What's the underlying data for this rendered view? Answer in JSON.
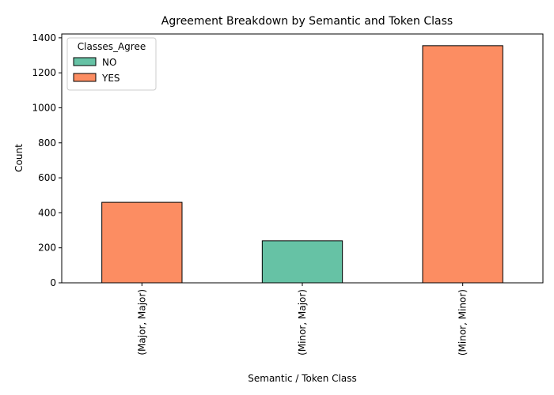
{
  "chart_data": {
    "type": "bar",
    "title": "Agreement Breakdown by Semantic and Token Class",
    "xlabel": "Semantic / Token Class",
    "ylabel": "Count",
    "categories": [
      "(Major, Major)",
      "(Minor, Major)",
      "(Minor, Minor)"
    ],
    "series": [
      {
        "name": "NO",
        "color": "#66c2a5",
        "values": [
          0,
          240,
          0
        ]
      },
      {
        "name": "YES",
        "color": "#fc8d62",
        "values": [
          460,
          0,
          1355
        ]
      }
    ],
    "stacked": true,
    "ylim": [
      0,
      1422
    ],
    "yticks": [
      0,
      200,
      400,
      600,
      800,
      1000,
      1200,
      1400
    ],
    "legend": {
      "title": "Classes_Agree",
      "placement": "top-left"
    },
    "grid": false
  }
}
